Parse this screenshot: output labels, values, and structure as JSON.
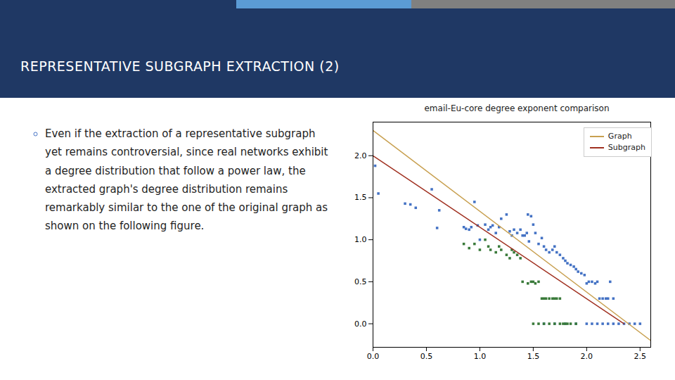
{
  "chart_data": {
    "type": "scatter",
    "title": "email-Eu-core degree exponent comparison",
    "annotations": [
      "REPRESENTATIVE SUBGRAPH EXTRACTION (2)",
      "Even if the extraction of a representative subgraph yet remains controversial, since real networks exhibit a degree distribution that follow a power law, the extracted graph's degree distribution remains remarkably similar to the one of the original graph as shown on the following figure."
    ],
    "xlim": [
      0.0,
      2.6
    ],
    "ylim": [
      -0.28,
      2.4
    ],
    "xticks": [
      {
        "value": 0.0,
        "label": "0.0"
      },
      {
        "value": 0.5,
        "label": "0.5"
      },
      {
        "value": 1.0,
        "label": "1.0"
      },
      {
        "value": 1.5,
        "label": "1.5"
      },
      {
        "value": 2.0,
        "label": "2.0"
      },
      {
        "value": 2.5,
        "label": "2.5"
      }
    ],
    "yticks": [
      {
        "value": 0.0,
        "label": "0.0"
      },
      {
        "value": 0.5,
        "label": "0.5"
      },
      {
        "value": 1.0,
        "label": "1.0"
      },
      {
        "value": 1.5,
        "label": "1.5"
      },
      {
        "value": 2.0,
        "label": "2.0"
      }
    ],
    "grid": false,
    "legend": "upper right",
    "series": [
      {
        "type": "scatter",
        "color": "#4472C4",
        "marker": "square",
        "x": [
          0.02,
          0.05,
          0.3,
          0.35,
          0.4,
          0.55,
          0.6,
          0.62,
          0.85,
          0.87,
          0.9,
          0.92,
          0.95,
          0.98,
          1.0,
          1.05,
          1.08,
          1.1,
          1.12,
          1.15,
          1.18,
          1.2,
          1.25,
          1.28,
          1.3,
          1.32,
          1.35,
          1.38,
          1.4,
          1.45,
          1.48,
          1.5,
          1.52,
          1.55,
          1.58,
          1.6,
          1.62,
          1.65,
          1.68,
          1.7,
          1.72,
          1.75,
          1.78,
          1.8,
          1.82,
          1.85,
          1.88,
          1.9,
          1.92,
          1.95,
          1.98,
          2.0,
          2.02,
          2.05,
          2.08,
          2.1,
          2.12,
          2.15,
          2.18,
          2.2,
          2.22,
          2.25,
          1.6,
          1.7,
          1.8,
          1.9,
          2.0,
          2.05,
          2.1,
          2.15,
          2.2,
          2.25,
          2.3,
          2.35,
          2.4,
          2.45,
          2.5,
          1.42,
          1.44,
          1.46
        ],
        "values": [
          1.88,
          1.55,
          1.43,
          1.42,
          1.38,
          1.6,
          1.14,
          1.35,
          1.15,
          1.13,
          1.12,
          1.15,
          1.45,
          1.17,
          1.0,
          1.18,
          1.12,
          1.15,
          1.17,
          1.08,
          1.15,
          1.25,
          1.3,
          1.1,
          1.05,
          1.12,
          1.08,
          1.12,
          1.05,
          1.3,
          1.28,
          1.18,
          1.08,
          0.95,
          1.02,
          0.92,
          0.88,
          0.85,
          0.88,
          0.92,
          0.85,
          0.82,
          0.78,
          0.75,
          0.72,
          0.7,
          0.68,
          0.65,
          0.62,
          0.6,
          0.58,
          0.48,
          0.5,
          0.5,
          0.48,
          0.5,
          0.3,
          0.3,
          0.3,
          0.3,
          0.5,
          0.3,
          0.0,
          0.0,
          0.0,
          0.0,
          0.0,
          0.0,
          0.0,
          0.0,
          0.0,
          0.0,
          0.0,
          0.0,
          0.0,
          0.0,
          0.0,
          1.05,
          1.08,
          0.98
        ]
      },
      {
        "type": "scatter",
        "color": "#3A7A3A",
        "marker": "square",
        "x": [
          0.85,
          0.9,
          0.95,
          1.0,
          1.05,
          1.08,
          1.1,
          1.15,
          1.18,
          1.2,
          1.25,
          1.28,
          1.3,
          1.32,
          1.35,
          1.38,
          1.4,
          1.45,
          1.48,
          1.5,
          1.52,
          1.55,
          1.58,
          1.6,
          1.62,
          1.65,
          1.68,
          1.7,
          1.72,
          1.75,
          1.5,
          1.55,
          1.6,
          1.65,
          1.7,
          1.75,
          1.78,
          1.8,
          1.82,
          1.85,
          1.9
        ],
        "values": [
          0.95,
          0.9,
          0.95,
          0.88,
          1.0,
          0.92,
          0.88,
          0.85,
          0.92,
          0.88,
          0.82,
          0.78,
          0.88,
          0.85,
          0.82,
          0.78,
          0.5,
          0.48,
          0.5,
          0.5,
          0.48,
          0.5,
          0.3,
          0.3,
          0.3,
          0.3,
          0.3,
          0.3,
          0.3,
          0.3,
          0.0,
          0.0,
          0.0,
          0.0,
          0.0,
          0.0,
          0.0,
          0.0,
          0.0,
          0.0,
          0.0
        ]
      },
      {
        "name": "Graph",
        "type": "line",
        "color": "#C8A050",
        "x": [
          0.0,
          2.6
        ],
        "values": [
          2.3,
          -0.2
        ]
      },
      {
        "name": "Subgraph",
        "type": "line",
        "color": "#A03020",
        "x": [
          0.0,
          2.35
        ],
        "values": [
          2.0,
          0.0
        ]
      }
    ]
  }
}
